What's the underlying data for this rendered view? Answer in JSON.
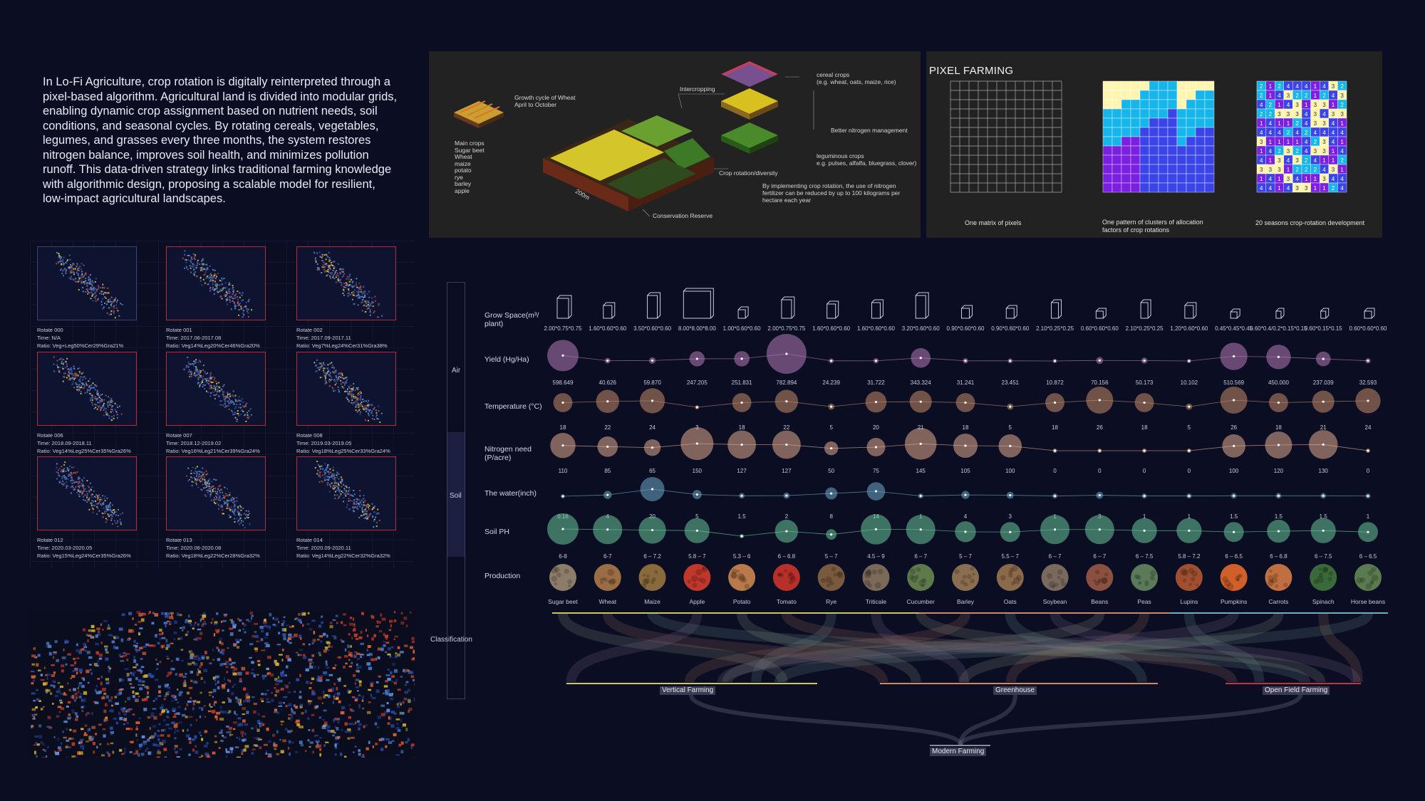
{
  "intro_text": "In Lo-Fi Agriculture, crop rotation is digitally reinterpreted through a pixel-based algorithm. Agricultural land is divided into modular grids, enabling dynamic crop assignment based on nutrient needs, soil conditions, and seasonal cycles. By rotating cereals, vegetables, legumes, and grasses every three months, the system restores nitrogen balance, improves soil health, and minimizes pollution runoff. This data-driven strategy links traditional farming knowledge with algorithmic design, proposing a scalable model for resilient, low-impact agricultural landscapes.",
  "rotations": [
    {
      "name": "Rotate 000",
      "time": "Time:  N/A",
      "ratio": "Ratio:  Veg+Leg50%Cer29%Gra21%"
    },
    {
      "name": "Rotate 001",
      "time": "Time:  2017.06-2017.08",
      "ratio": "Ratio:  Veg14%Leg20%Cer46%Gra20%"
    },
    {
      "name": "Rotate 002",
      "time": "Time:  2017.09-2017.11",
      "ratio": "Ratio:  Veg7%Leg24%Cer31%Gra38%"
    },
    {
      "name": "Rotate 006",
      "time": "Time:  2018.09-2018.11",
      "ratio": "Ratio:  Veg14%Leg25%Cer35%Gra26%"
    },
    {
      "name": "Rotate 007",
      "time": "Time:  2018.12-2019.02",
      "ratio": "Ratio:  Veg16%Leg21%Cer39%Gra24%"
    },
    {
      "name": "Rotate 008",
      "time": "Time:  2019.03-2019.05",
      "ratio": "Ratio:  Veg18%Leg25%Cer33%Gra24%"
    },
    {
      "name": "Rotate 012",
      "time": "Time:  2020.03-2020.05",
      "ratio": "Ratio:  Veg15%Leg24%Cer35%Gra26%"
    },
    {
      "name": "Rotate 013",
      "time": "Time:  2020.06-2020.08",
      "ratio": "Ratio:  Veg18%Leg22%Cer28%Gra32%"
    },
    {
      "name": "Rotate 014",
      "time": "Time:  2020.09-2020.11",
      "ratio": "Ratio:  Veg14%Leg22%Cer32%Gra32%"
    }
  ],
  "diagram": {
    "growth_cycle": "Growth cycle of Wheat\nApril to October",
    "main_crops": "Main crops\nSugar beet\nWheat\nmaize\npotato\nrye\nbarley\napple",
    "intercropping": "Intercropping",
    "cereal": "cereal crops\n(e.g. wheat, oats, maize, rice)",
    "nitrogen_mgmt": "Better nitrogen management",
    "legume": "leguminous crops\ne.g. pulses, alfalfa, bluegrass, clover)",
    "rotation": "Crop rotation/diversity",
    "implementing": "By implementing crop rotation, the use of nitrogen\nfertilizer can be reduced by up to 100 kilograms per\nhectare each year",
    "conservation": "Conservation Reserve",
    "dim": "200m"
  },
  "pixel_farming": {
    "title": "PIXEL FARMING",
    "cap1": "One matrix of pixels",
    "cap2": "One pattern of clusters of allocation\nfactors of crop rotations",
    "cap3": "20 seasons crop-rotation development"
  },
  "side": {
    "air": "Air",
    "soil": "Soil",
    "classification": "Classification"
  },
  "row_labels": {
    "grow_space": "Grow Space(m³/\nplant)",
    "yield": "Yield (Hg/Ha)",
    "temperature": "Temperature (°C)",
    "nitrogen": "Nitrogen need\n(P/acre)",
    "water": "The water(inch)",
    "ph": "Soil PH",
    "production": "Production"
  },
  "crops": [
    "Sugar beet",
    "Wheat",
    "Maize",
    "Apple",
    "Potato",
    "Tomato",
    "Rye",
    "Triticale",
    "Cucumber",
    "Barley",
    "Oats",
    "Soybean",
    "Beans",
    "Peas",
    "Lupins",
    "Pumpkins",
    "Carrots",
    "Spinach",
    "Horse beans"
  ],
  "crop_colors": [
    "#8b7d6a",
    "#9b6d45",
    "#8a6a3c",
    "#c0382c",
    "#b87a4a",
    "#b8302a",
    "#7a5a3e",
    "#7b6a5a",
    "#5e7a4a",
    "#8a6e50",
    "#8a6a48",
    "#7a6a5e",
    "#8a5040",
    "#5a7a5a",
    "#a05030",
    "#d0602a",
    "#c07040",
    "#3a6a3a",
    "#5a7a50"
  ],
  "chart_data": {
    "type": "scatter",
    "categories": [
      "Sugar beet",
      "Wheat",
      "Maize",
      "Apple",
      "Potato",
      "Tomato",
      "Rye",
      "Triticale",
      "Cucumber",
      "Barley",
      "Oats",
      "Soybean",
      "Beans",
      "Peas",
      "Lupins",
      "Pumpkins",
      "Carrots",
      "Spinach",
      "Horse beans"
    ],
    "grow_space_labels": [
      "2.00*0.75*0.75",
      "1.60*0.60*0.60",
      "3.50*0.60*0.60",
      "8.00*8.00*8.00",
      "1.00*0.60*0.60",
      "2.00*0.75*0.75",
      "1.60*0.60*0.60",
      "1.60*0.60*0.60",
      "3.20*0.60*0.60",
      "0.90*0.60*0.60",
      "0.90*0.60*0.60",
      "2.10*0.25*0.25",
      "0.60*0.60*0.60",
      "2.10*0.25*0.25",
      "1.20*0.60*0.60",
      "0.45*0.45*0.45",
      "0.60*0.4/0.2*0.15*0.15",
      "0.60*0.15*0.15",
      "0.60*0.60*0.60"
    ],
    "series": [
      {
        "name": "Yield (Hg/Ha)",
        "values": [
          598.649,
          40.626,
          59.87,
          247.205,
          251.831,
          782.894,
          24.239,
          31.722,
          343.324,
          31.241,
          23.451,
          10.872,
          70.156,
          50.173,
          10.102,
          510.569,
          450.0,
          237.039,
          32.593
        ],
        "labels": [
          "598.649",
          "40.626",
          "59.870",
          "247.205",
          "251.831",
          "782.894",
          "24.239",
          "31.722",
          "343.324",
          "31.241",
          "23.451",
          "10.872",
          "70.156",
          "50.173",
          "10.102",
          "510.569",
          "450.000",
          "237.039",
          "32.593"
        ],
        "color": "#b57ab8"
      },
      {
        "name": "Temperature (°C)",
        "values": [
          18,
          22,
          24,
          3,
          18,
          22,
          5,
          20,
          21,
          18,
          5,
          18,
          26,
          18,
          5,
          26,
          18,
          21,
          24
        ],
        "labels": [
          "18",
          "22",
          "24",
          "3",
          "18",
          "22",
          "5",
          "20",
          "21",
          "18",
          "5",
          "18",
          "26",
          "18",
          "5",
          "26",
          "18",
          "21",
          "24"
        ],
        "color": "#c78a6a"
      },
      {
        "name": "Nitrogen need (P/acre)",
        "values": [
          110,
          85,
          65,
          150,
          127,
          127,
          50,
          75,
          145,
          105,
          100,
          0,
          0,
          0,
          0,
          100,
          120,
          130,
          0
        ],
        "labels": [
          "110",
          "85",
          "65",
          "150",
          "127",
          "127",
          "50",
          "75",
          "145",
          "105",
          "100",
          "0",
          "0",
          "0",
          "0",
          "100",
          "120",
          "130",
          "0"
        ],
        "color": "#e3a98f"
      },
      {
        "name": "The water(inch)",
        "values": [
          0.16,
          4,
          20,
          5,
          1.5,
          2,
          8,
          14,
          1,
          4,
          3,
          1,
          3,
          1,
          1,
          1.5,
          1.5,
          1.5,
          1
        ],
        "labels": [
          "0.16",
          "4",
          "20",
          "5",
          "1.5",
          "2",
          "8",
          "14",
          "1",
          "4",
          "3",
          "1",
          "3",
          "1",
          "1",
          "1.5",
          "1.5",
          "1.5",
          "1"
        ],
        "color": "#6fa7c7"
      },
      {
        "name": "Soil PH",
        "values": [
          6.8,
          6.7,
          6.6,
          6.5,
          5.5,
          6.4,
          5.8,
          6.75,
          6.7,
          6.3,
          6.25,
          6.7,
          6.7,
          6.5,
          6.5,
          6.25,
          6.4,
          6.5,
          6.25
        ],
        "labels": [
          "6-8",
          "6-7",
          "6 – 7.2",
          "5.8 – 7",
          "5.3 – 6",
          "6 – 6.8",
          "5 – 7",
          "4.5 – 9",
          "6 – 7",
          "5 – 7",
          "5.5 – 7",
          "6 – 7",
          "6 – 7",
          "6 – 7.5",
          "5.8 – 7.2",
          "6 – 6.5",
          "6 – 6.8",
          "6 – 7.5",
          "6 – 6.5"
        ],
        "color": "#69c79a"
      }
    ],
    "classification": [
      "Vertical Farming",
      "Greenhouse",
      "Open Field Farming",
      "Modern Farming"
    ]
  }
}
